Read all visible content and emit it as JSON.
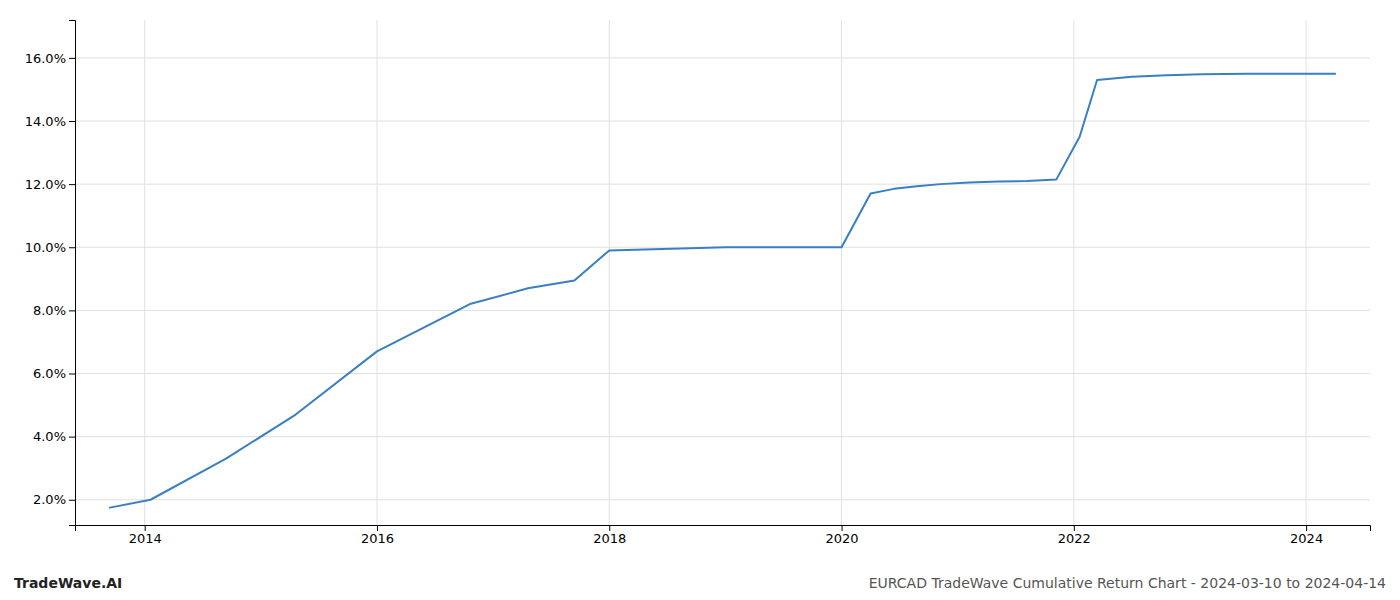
{
  "chart_data": {
    "type": "line",
    "title": "EURCAD TradeWave Cumulative Return Chart - 2024-03-10 to 2024-04-14",
    "annotations": [
      "TradeWave.AI"
    ],
    "x": [
      2013.7,
      2014.05,
      2014.7,
      2015.3,
      2016.0,
      2016.8,
      2017.3,
      2017.7,
      2018.0,
      2018.3,
      2018.7,
      2019.0,
      2019.3,
      2019.7,
      2020.0,
      2020.25,
      2020.45,
      2020.65,
      2020.85,
      2021.1,
      2021.35,
      2021.6,
      2021.85,
      2022.05,
      2022.2,
      2022.5,
      2022.8,
      2023.1,
      2023.5,
      2023.9,
      2024.25
    ],
    "values": [
      1.75,
      2.0,
      3.3,
      4.7,
      6.7,
      8.2,
      8.7,
      8.95,
      9.9,
      9.93,
      9.97,
      10.0,
      10.0,
      10.0,
      10.0,
      11.7,
      11.85,
      11.93,
      12.0,
      12.05,
      12.08,
      12.1,
      12.15,
      13.5,
      15.3,
      15.4,
      15.45,
      15.48,
      15.5,
      15.5,
      15.5
    ],
    "color": "#3a7fc1",
    "xlim": [
      2013.4,
      2024.55
    ],
    "ylim": [
      1.2,
      17.2
    ],
    "xticks": [
      2014,
      2016,
      2018,
      2020,
      2022,
      2024
    ],
    "yticks": [
      {
        "value": 2.0,
        "label": "2.0%"
      },
      {
        "value": 4.0,
        "label": "4.0%"
      },
      {
        "value": 6.0,
        "label": "6.0%"
      },
      {
        "value": 8.0,
        "label": "8.0%"
      },
      {
        "value": 10.0,
        "label": "10.0%"
      },
      {
        "value": 12.0,
        "label": "12.0%"
      },
      {
        "value": 14.0,
        "label": "14.0%"
      },
      {
        "value": 16.0,
        "label": "16.0%"
      }
    ],
    "grid": true
  }
}
